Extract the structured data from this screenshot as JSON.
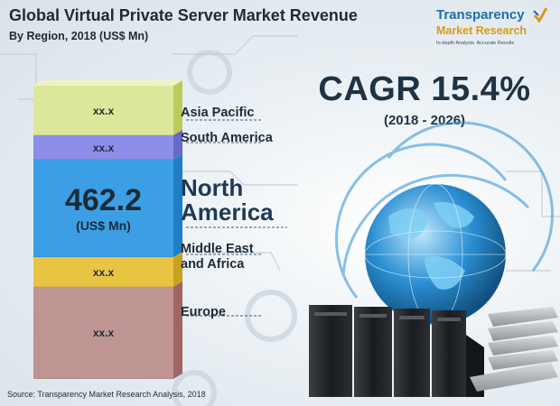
{
  "header": {
    "title": "Global Virtual Private Server Market Revenue",
    "subtitle": "By Region, 2018 (US$ Mn)"
  },
  "logo": {
    "line1": "Transparency",
    "line2": "Market Research",
    "line3": "In-depth Analysis. Accurate Results"
  },
  "highlight": {
    "cagr": "CAGR 15.4%",
    "period": "(2018 - 2026)"
  },
  "chart_data": {
    "type": "bar",
    "orientation": "stacked-vertical",
    "title": "Global Virtual Private Server Market Revenue",
    "subtitle": "By Region, 2018 (US$ Mn)",
    "categories": [
      "Asia Pacific",
      "South America",
      "North America",
      "Middle East and Africa",
      "Europe"
    ],
    "value_labels": [
      "xx.x",
      "xx.x",
      "462.2",
      "xx.x",
      "xx.x"
    ],
    "values": [
      null,
      null,
      462.2,
      null,
      null
    ],
    "highlight_unit": "(US$ Mn)",
    "series_colors": [
      "#dde79a",
      "#8c8ee8",
      "#3c9fe6",
      "#e9c443",
      "#bf9593"
    ],
    "side_colors": [
      "#bccc5a",
      "#6569c9",
      "#1f7ec6",
      "#c9a120",
      "#a06563"
    ],
    "labels": {
      "asia_pacific": "Asia Pacific",
      "south_america": "South America",
      "north_america_l1": "North",
      "north_america_l2": "America",
      "mea_l1": "Middle East",
      "mea_l2": "and Africa",
      "europe": "Europe"
    },
    "legend": "none",
    "grid": false
  },
  "footer": {
    "source": "Source: Transparency Market Research Analysis, 2018"
  }
}
